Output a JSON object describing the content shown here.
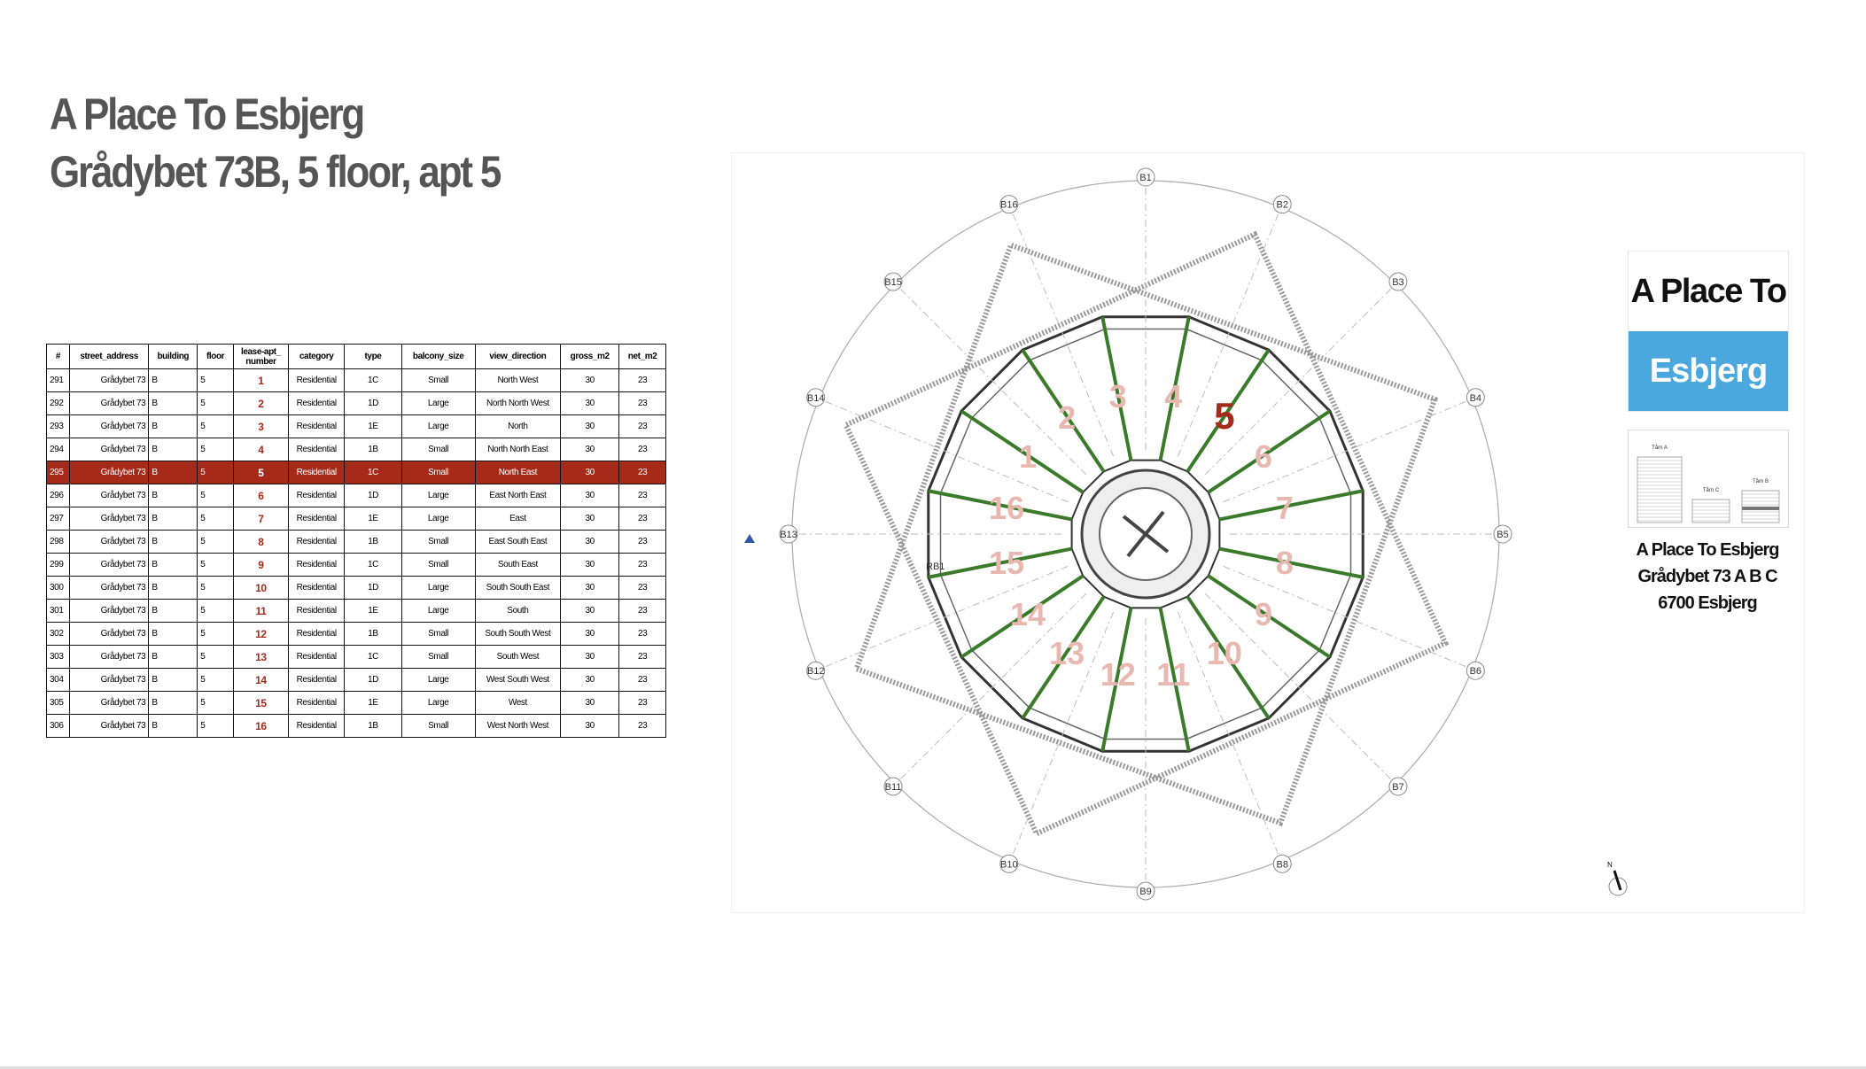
{
  "header": {
    "title": "A Place To Esbjerg",
    "subtitle": "Grådybet 73B, 5 floor, apt 5"
  },
  "table": {
    "columns": [
      "#",
      "street_address",
      "building",
      "floor",
      "lease-apt_ number",
      "category",
      "type",
      "balcony_size",
      "view_direction",
      "gross_m2",
      "net_m2"
    ],
    "selected_row": 4,
    "rows": [
      [
        "291",
        "Grådybet 73",
        "B",
        "5",
        "1",
        "Residential",
        "1C",
        "Small",
        "North West",
        "30",
        "23"
      ],
      [
        "292",
        "Grådybet 73",
        "B",
        "5",
        "2",
        "Residential",
        "1D",
        "Large",
        "North North West",
        "30",
        "23"
      ],
      [
        "293",
        "Grådybet 73",
        "B",
        "5",
        "3",
        "Residential",
        "1E",
        "Large",
        "North",
        "30",
        "23"
      ],
      [
        "294",
        "Grådybet 73",
        "B",
        "5",
        "4",
        "Residential",
        "1B",
        "Small",
        "North North East",
        "30",
        "23"
      ],
      [
        "295",
        "Grådybet 73",
        "B",
        "5",
        "5",
        "Residential",
        "1C",
        "Small",
        "North East",
        "30",
        "23"
      ],
      [
        "296",
        "Grådybet 73",
        "B",
        "5",
        "6",
        "Residential",
        "1D",
        "Large",
        "East North East",
        "30",
        "23"
      ],
      [
        "297",
        "Grådybet 73",
        "B",
        "5",
        "7",
        "Residential",
        "1E",
        "Large",
        "East",
        "30",
        "23"
      ],
      [
        "298",
        "Grådybet 73",
        "B",
        "5",
        "8",
        "Residential",
        "1B",
        "Small",
        "East South East",
        "30",
        "23"
      ],
      [
        "299",
        "Grådybet 73",
        "B",
        "5",
        "9",
        "Residential",
        "1C",
        "Small",
        "South East",
        "30",
        "23"
      ],
      [
        "300",
        "Grådybet 73",
        "B",
        "5",
        "10",
        "Residential",
        "1D",
        "Large",
        "South South East",
        "30",
        "23"
      ],
      [
        "301",
        "Grådybet 73",
        "B",
        "5",
        "11",
        "Residential",
        "1E",
        "Large",
        "South",
        "30",
        "23"
      ],
      [
        "302",
        "Grådybet 73",
        "B",
        "5",
        "12",
        "Residential",
        "1B",
        "Small",
        "South South West",
        "30",
        "23"
      ],
      [
        "303",
        "Grådybet 73",
        "B",
        "5",
        "13",
        "Residential",
        "1C",
        "Small",
        "South West",
        "30",
        "23"
      ],
      [
        "304",
        "Grådybet 73",
        "B",
        "5",
        "14",
        "Residential",
        "1D",
        "Large",
        "West South West",
        "30",
        "23"
      ],
      [
        "305",
        "Grådybet 73",
        "B",
        "5",
        "15",
        "Residential",
        "1E",
        "Large",
        "West",
        "30",
        "23"
      ],
      [
        "306",
        "Grådybet 73",
        "B",
        "5",
        "16",
        "Residential",
        "1B",
        "Small",
        "West North West",
        "30",
        "23"
      ]
    ]
  },
  "floor_plan": {
    "axes": [
      "B1",
      "B2",
      "B3",
      "B4",
      "B5",
      "B6",
      "B7",
      "B8",
      "B9",
      "B10",
      "B11",
      "B12",
      "B13",
      "B14",
      "B15",
      "B16"
    ],
    "extra_label": "RB1",
    "units": [
      "1",
      "2",
      "3",
      "4",
      "5",
      "6",
      "7",
      "8",
      "9",
      "10",
      "11",
      "12",
      "13",
      "14",
      "15",
      "16"
    ],
    "highlighted_unit": "5",
    "north_label": "N"
  },
  "logo": {
    "line1": "A Place To",
    "line2": "Esbjerg"
  },
  "elevation": {
    "towers": [
      "Tårn A",
      "Tårn C",
      "Tårn B"
    ]
  },
  "address": {
    "line1": "A Place To Esbjerg",
    "line2": "Grådybet 73 A B C",
    "line3": "6700 Esbjerg"
  },
  "colors": {
    "highlight": "#a52a1a",
    "brand_blue": "#4aa8df",
    "wall_green": "#3a7a2a",
    "unit_number_faded": "#e8b8b0"
  }
}
